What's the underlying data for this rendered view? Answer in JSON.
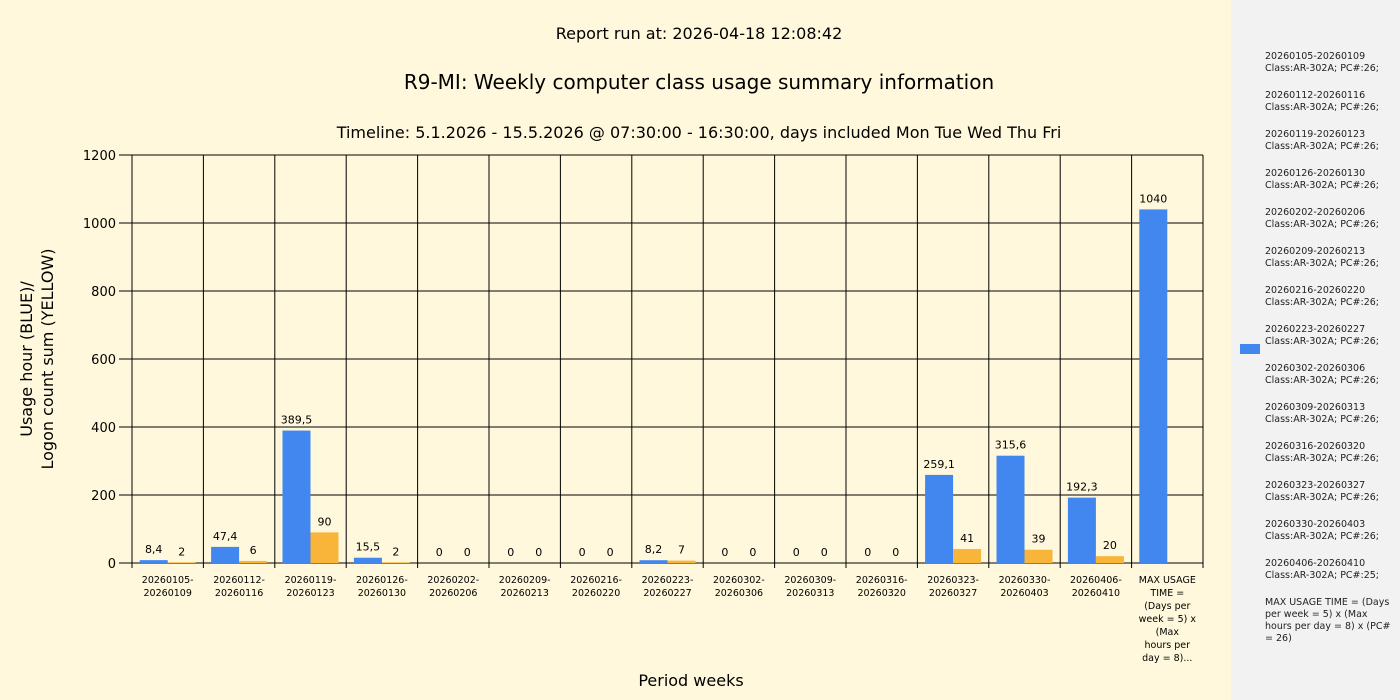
{
  "header": {
    "report_run": "Report run at: 2026-04-18 12:08:42",
    "title": "R9-MI: Weekly computer class usage summary information",
    "timeline": "Timeline:  5.1.2026  - 15.5.2026  @  07:30:00 -  16:30:00, days included Mon Tue Wed Thu Fri"
  },
  "colors": {
    "usage": "#4286EF",
    "logon": "#F9B43A",
    "background": "#FFF8DC",
    "legend_background": "#F2F2F2"
  },
  "chart_data": {
    "type": "bar",
    "title": "R9-MI: Weekly computer class usage summary information",
    "xlabel": "Period weeks",
    "ylabel_lines": [
      "Usage hour (BLUE)/",
      "Logon count sum (YELLOW)"
    ],
    "ylim": [
      0,
      1200
    ],
    "yticks": [
      "0",
      "200",
      "400",
      "600",
      "800",
      "1000",
      "1200"
    ],
    "grid": true,
    "legend_placement": "right",
    "categories": [
      [
        "20260105-",
        "20260109"
      ],
      [
        "20260112-",
        "20260116"
      ],
      [
        "20260119-",
        "20260123"
      ],
      [
        "20260126-",
        "20260130"
      ],
      [
        "20260202-",
        "20260206"
      ],
      [
        "20260209-",
        "20260213"
      ],
      [
        "20260216-",
        "20260220"
      ],
      [
        "20260223-",
        "20260227"
      ],
      [
        "20260302-",
        "20260306"
      ],
      [
        "20260309-",
        "20260313"
      ],
      [
        "20260316-",
        "20260320"
      ],
      [
        "20260323-",
        "20260327"
      ],
      [
        "20260330-",
        "20260403"
      ],
      [
        "20260406-",
        "20260410"
      ],
      [
        "MAX USAGE",
        "TIME =",
        "(Days per",
        "week = 5) x",
        "(Max",
        "hours per",
        "day = 8)..."
      ]
    ],
    "series": [
      {
        "color": "#4286EF",
        "values": [
          8.4,
          47.4,
          389.5,
          15.5,
          0,
          0,
          0,
          8.2,
          0,
          0,
          0,
          259.1,
          315.6,
          192.3,
          1040
        ],
        "labels": [
          "8,4",
          "47,4",
          "389,5",
          "15,5",
          "0",
          "0",
          "0",
          "8,2",
          "0",
          "0",
          "0",
          "259,1",
          "315,6",
          "192,3",
          "1040"
        ]
      },
      {
        "color": "#F9B43A",
        "values": [
          2,
          6,
          90,
          2,
          0,
          0,
          0,
          7,
          0,
          0,
          0,
          41,
          39,
          20,
          null
        ],
        "labels": [
          "2",
          "6",
          "90",
          "2",
          "0",
          "0",
          "0",
          "7",
          "0",
          "0",
          "0",
          "41",
          "39",
          "20",
          ""
        ]
      }
    ]
  },
  "legend": {
    "items": [
      {
        "period": "20260105-20260109",
        "info": "Class:AR-302A; PC#:26;"
      },
      {
        "period": "20260112-20260116",
        "info": "Class:AR-302A; PC#:26;"
      },
      {
        "period": "20260119-20260123",
        "info": "Class:AR-302A; PC#:26;"
      },
      {
        "period": "20260126-20260130",
        "info": "Class:AR-302A; PC#:26;"
      },
      {
        "period": "20260202-20260206",
        "info": "Class:AR-302A; PC#:26;"
      },
      {
        "period": "20260209-20260213",
        "info": "Class:AR-302A; PC#:26;"
      },
      {
        "period": "20260216-20260220",
        "info": "Class:AR-302A; PC#:26;"
      },
      {
        "period": "20260223-20260227",
        "info": "Class:AR-302A; PC#:26;"
      },
      {
        "period": "20260302-20260306",
        "info": "Class:AR-302A; PC#:26;"
      },
      {
        "period": "20260309-20260313",
        "info": "Class:AR-302A; PC#:26;"
      },
      {
        "period": "20260316-20260320",
        "info": "Class:AR-302A; PC#:26;"
      },
      {
        "period": "20260323-20260327",
        "info": "Class:AR-302A; PC#:26;"
      },
      {
        "period": "20260330-20260403",
        "info": "Class:AR-302A; PC#:26;"
      },
      {
        "period": "20260406-20260410",
        "info": "Class:AR-302A; PC#:25;"
      }
    ],
    "note": "MAX USAGE TIME = (Days per week = 5) x (Max hours per day = 8) x (PC# = 26)"
  }
}
